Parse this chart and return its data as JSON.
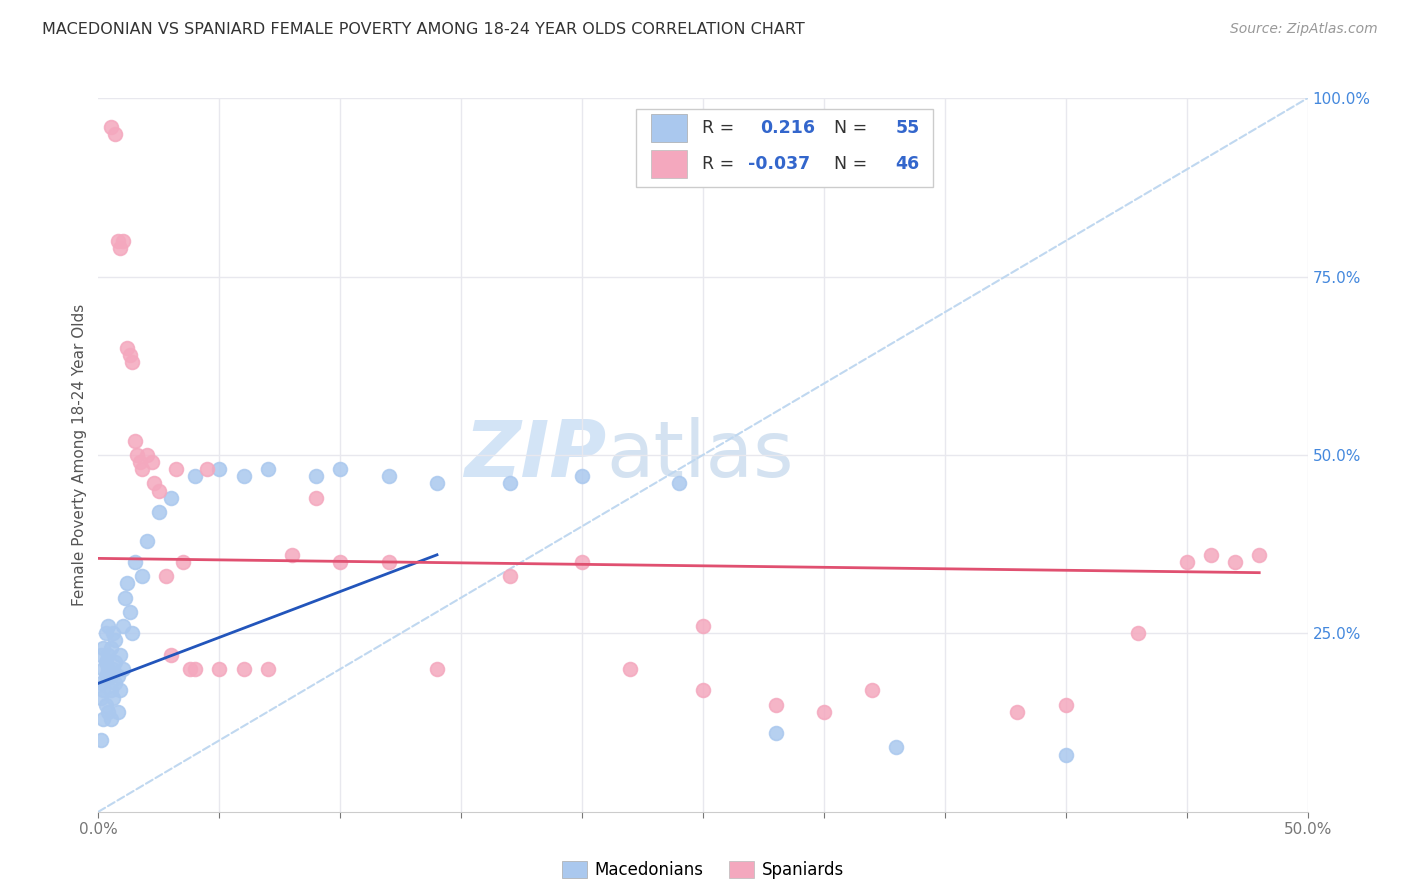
{
  "title": "MACEDONIAN VS SPANIARD FEMALE POVERTY AMONG 18-24 YEAR OLDS CORRELATION CHART",
  "source": "Source: ZipAtlas.com",
  "ylabel_label": "Female Poverty Among 18-24 Year Olds",
  "xlim": [
    0.0,
    0.5
  ],
  "ylim": [
    0.0,
    1.0
  ],
  "macedonian_color": "#aac8ee",
  "spaniard_color": "#f4a8be",
  "trend_mac_color": "#2255bb",
  "trend_spa_color": "#e05070",
  "ref_line_color": "#c0d8f0",
  "legend_color_num": "#3366cc",
  "legend_color_text": "#333333",
  "watermark_zip_color": "#cce0f5",
  "watermark_atlas_color": "#b8d0e8",
  "background_color": "#ffffff",
  "grid_color": "#e8e8ee",
  "axis_color": "#cccccc",
  "tick_color": "#777777",
  "title_color": "#333333",
  "source_color": "#999999",
  "ylabel_color": "#555555",
  "right_tick_color": "#4488dd",
  "mac_x": [
    0.001,
    0.001,
    0.001,
    0.001,
    0.002,
    0.002,
    0.002,
    0.002,
    0.003,
    0.003,
    0.003,
    0.003,
    0.004,
    0.004,
    0.004,
    0.004,
    0.005,
    0.005,
    0.005,
    0.005,
    0.006,
    0.006,
    0.006,
    0.007,
    0.007,
    0.007,
    0.008,
    0.008,
    0.009,
    0.009,
    0.01,
    0.01,
    0.011,
    0.012,
    0.013,
    0.014,
    0.015,
    0.018,
    0.02,
    0.025,
    0.03,
    0.04,
    0.05,
    0.06,
    0.07,
    0.09,
    0.1,
    0.12,
    0.14,
    0.17,
    0.2,
    0.24,
    0.28,
    0.33,
    0.4
  ],
  "mac_y": [
    0.18,
    0.22,
    0.16,
    0.1,
    0.2,
    0.17,
    0.23,
    0.13,
    0.21,
    0.19,
    0.15,
    0.25,
    0.22,
    0.14,
    0.2,
    0.26,
    0.19,
    0.23,
    0.17,
    0.13,
    0.2,
    0.25,
    0.16,
    0.21,
    0.18,
    0.24,
    0.19,
    0.14,
    0.22,
    0.17,
    0.2,
    0.26,
    0.3,
    0.32,
    0.28,
    0.25,
    0.35,
    0.33,
    0.38,
    0.42,
    0.44,
    0.47,
    0.48,
    0.47,
    0.48,
    0.47,
    0.48,
    0.47,
    0.46,
    0.46,
    0.47,
    0.46,
    0.11,
    0.09,
    0.08
  ],
  "spa_x": [
    0.005,
    0.007,
    0.008,
    0.009,
    0.01,
    0.012,
    0.013,
    0.014,
    0.015,
    0.016,
    0.017,
    0.018,
    0.02,
    0.022,
    0.023,
    0.025,
    0.028,
    0.03,
    0.032,
    0.035,
    0.038,
    0.04,
    0.045,
    0.05,
    0.06,
    0.07,
    0.08,
    0.09,
    0.1,
    0.12,
    0.14,
    0.17,
    0.2,
    0.22,
    0.25,
    0.28,
    0.32,
    0.38,
    0.4,
    0.43,
    0.46,
    0.48,
    0.25,
    0.3,
    0.45,
    0.47
  ],
  "spa_y": [
    0.96,
    0.95,
    0.8,
    0.79,
    0.8,
    0.65,
    0.64,
    0.63,
    0.52,
    0.5,
    0.49,
    0.48,
    0.5,
    0.49,
    0.46,
    0.45,
    0.33,
    0.22,
    0.48,
    0.35,
    0.2,
    0.2,
    0.48,
    0.2,
    0.2,
    0.2,
    0.36,
    0.44,
    0.35,
    0.35,
    0.2,
    0.33,
    0.35,
    0.2,
    0.17,
    0.15,
    0.17,
    0.14,
    0.15,
    0.25,
    0.36,
    0.36,
    0.26,
    0.14,
    0.35,
    0.35
  ]
}
